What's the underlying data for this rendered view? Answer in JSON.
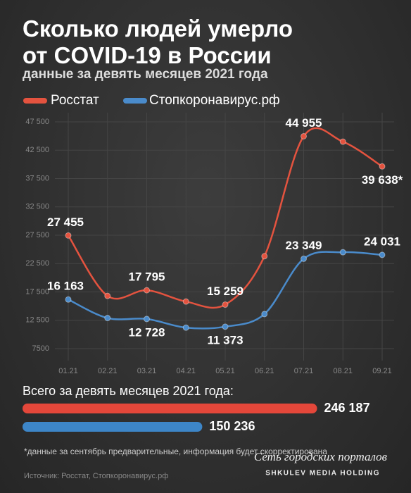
{
  "title": "Сколько людей умерло от COVID-19 в России",
  "subtitle": "данные за девять месяцев 2021 года",
  "chart_data": [
    {
      "type": "line",
      "categories": [
        "01.21",
        "02.21",
        "03.21",
        "04.21",
        "05.21",
        "06.21",
        "07.21",
        "08.21",
        "09.21"
      ],
      "series": [
        {
          "name": "Росстат",
          "color": "#e4533f",
          "values": [
            27455,
            16800,
            17795,
            15800,
            15259,
            23800,
            44955,
            44000,
            39638
          ],
          "value_labels": [
            "27 455",
            null,
            "17 795",
            null,
            "15 259",
            null,
            "44 955",
            null,
            "39 638*"
          ]
        },
        {
          "name": "Стопкоронавирус.рф",
          "color": "#4a8bcb",
          "values": [
            16163,
            12900,
            12728,
            11200,
            11373,
            13600,
            23349,
            24500,
            24031
          ],
          "value_labels": [
            "16 163",
            null,
            "12 728",
            null,
            "11 373",
            null,
            "23 349",
            null,
            "24 031"
          ]
        }
      ],
      "ylim": [
        7500,
        47500
      ],
      "yticks": [
        {
          "value": 7500,
          "label": "7500"
        },
        {
          "value": 12500,
          "label": "12 500"
        },
        {
          "value": 17500,
          "label": "17 500"
        },
        {
          "value": 22500,
          "label": "22 500"
        },
        {
          "value": 27500,
          "label": "27 500"
        },
        {
          "value": 32500,
          "label": "32 500"
        },
        {
          "value": 37500,
          "label": "37 500"
        },
        {
          "value": 42500,
          "label": "42 500"
        },
        {
          "value": 47500,
          "label": "47 500"
        }
      ],
      "grid": true
    },
    {
      "type": "hbar",
      "title": "Всего за девять месяцев 2021 года:",
      "values": [
        246187,
        150236
      ],
      "value_labels": [
        "246 187",
        "150 236"
      ],
      "colors": [
        "#e4473a",
        "#3d86c8"
      ],
      "xlim": [
        0,
        250000
      ]
    }
  ],
  "footer": {
    "note": "*данные за сентябрь предварительные, информация будет скорректирована",
    "source": "Источник: Росстат, Стопкоронавирус.рф",
    "brand": "Сеть городских порталов",
    "brand_sub": "SHKULEV MEDIA HOLDING"
  }
}
